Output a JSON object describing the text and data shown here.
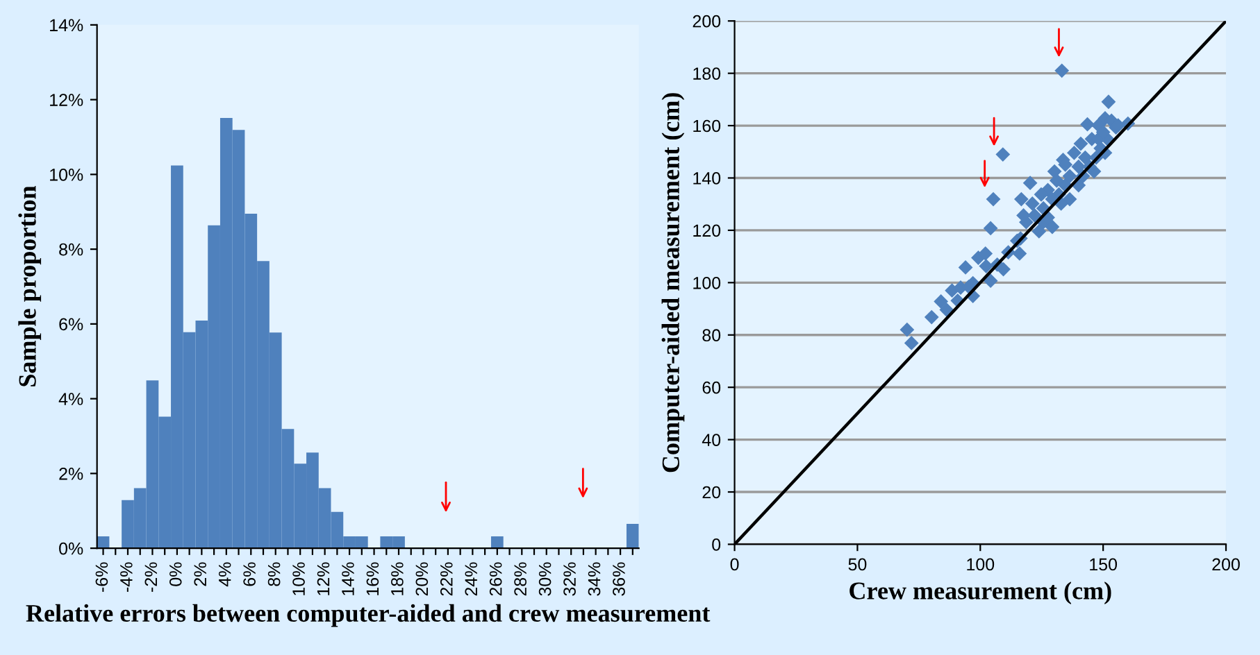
{
  "chart_data": [
    {
      "type": "bar",
      "xlabel": "Relative errors between computer-aided and crew measurement",
      "ylabel": "Sample proportion",
      "categories": [
        "-6%",
        null,
        "-4%",
        null,
        "-2%",
        null,
        "0%",
        null,
        "2%",
        null,
        "4%",
        null,
        "6%",
        null,
        "8%",
        null,
        "10%",
        null,
        "12%",
        null,
        "14%",
        null,
        "16%",
        null,
        "18%",
        null,
        "20%",
        null,
        "22%",
        null,
        "24%",
        null,
        "26%",
        null,
        "28%",
        null,
        "30%",
        null,
        "32%",
        null,
        "34%",
        null,
        "36%",
        null
      ],
      "values": [
        0.32,
        0,
        1.29,
        1.61,
        4.49,
        3.52,
        10.24,
        5.78,
        6.09,
        8.64,
        11.51,
        11.19,
        8.95,
        7.68,
        5.77,
        3.19,
        2.26,
        2.56,
        1.61,
        0.97,
        0.32,
        0.32,
        0,
        0.32,
        0.32,
        0,
        0,
        0,
        0,
        0,
        0,
        0,
        0.32,
        0,
        0,
        0,
        0,
        0,
        0,
        0,
        0,
        0,
        0,
        0.65
      ],
      "color": "#4f81bd",
      "ylim": [
        0,
        14
      ],
      "yticks": [
        {
          "value": 0,
          "label": "0%"
        },
        {
          "value": 2,
          "label": "2%"
        },
        {
          "value": 4,
          "label": "4%"
        },
        {
          "value": 6,
          "label": "6%"
        },
        {
          "value": 8,
          "label": "8%"
        },
        {
          "value": 10,
          "label": "10%"
        },
        {
          "value": 12,
          "label": "12%"
        },
        {
          "value": 14,
          "label": "14%"
        }
      ]
    },
    {
      "type": "scatter",
      "xlabel": "Crew measurement (cm)",
      "ylabel": "Computer-aided measurement (cm)",
      "xlim": [
        0,
        200
      ],
      "xticks": [
        0,
        50,
        100,
        150,
        200
      ],
      "ylim": [
        0,
        200
      ],
      "yticks": [
        0,
        20,
        40,
        60,
        80,
        100,
        120,
        140,
        160,
        180,
        200
      ],
      "grid": "y",
      "marker": "diamond",
      "series": [
        {
          "type": "scatter",
          "color": "#4f81bd",
          "x": [
            70.2,
            72.0,
            80.2,
            84.0,
            88.5,
            86.3,
            94.0,
            92.0,
            97.0,
            99.2,
            102.1,
            104.2,
            104.2,
            105.3,
            109.2,
            133.2,
            152.2,
            106.9,
            109.4,
            116.0,
            116.4,
            116.7,
            120.3,
            122.1,
            123.9,
            125.7,
            127.5,
            129.3,
            130.2,
            132.0,
            133.7,
            134.6,
            136.4,
            138.2,
            140.0,
            140.9,
            142.7,
            143.6,
            145.4,
            146.3,
            148.1,
            149.0,
            150.8,
            151.7,
            153.4,
            155.2,
            160.1,
            147.2,
            150.8,
            136.4,
            132.9,
            129.3,
            125.7,
            118.7,
            115.0,
            111.4,
            102.4,
            97.0,
            90.8,
            95.3,
            140.0,
            144.5,
            134.6,
            131.1,
            124.8,
            121.2,
            117.6,
            127.5,
            141.8,
            148.1,
            156.1,
            150.0
          ],
          "values": [
            82.0,
            76.9,
            86.8,
            92.8,
            97.0,
            89.6,
            105.8,
            98.1,
            99.8,
            109.5,
            111.1,
            100.7,
            120.8,
            131.9,
            149.0,
            181.0,
            169.1,
            106.9,
            105.1,
            111.1,
            116.9,
            131.9,
            138.1,
            125.7,
            119.6,
            128.4,
            135.4,
            121.3,
            142.5,
            133.7,
            146.9,
            137.2,
            140.7,
            149.6,
            144.3,
            153.1,
            147.8,
            160.5,
            154.9,
            142.5,
            160.1,
            151.3,
            162.8,
            154.9,
            161.9,
            159.3,
            160.8,
            147.8,
            149.6,
            131.9,
            130.2,
            131.9,
            123.1,
            123.1,
            116.0,
            111.6,
            106.3,
            94.9,
            93.1,
            98.4,
            137.2,
            144.3,
            145.1,
            139.0,
            133.7,
            130.2,
            125.7,
            124.9,
            140.7,
            154.9,
            160.1,
            157.5
          ]
        },
        {
          "type": "line",
          "color": "#000000",
          "x": [
            0,
            200
          ],
          "values": [
            0,
            200
          ],
          "marker": "none"
        }
      ]
    }
  ]
}
